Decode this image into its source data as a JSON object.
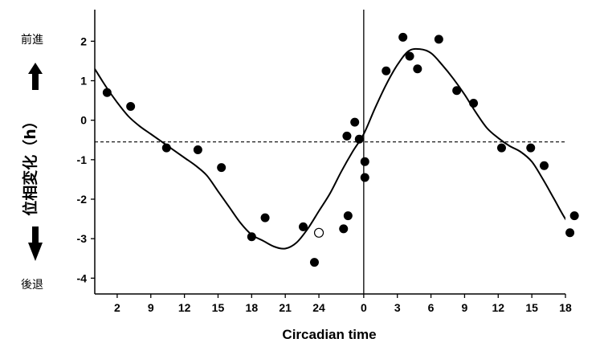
{
  "chart_data": {
    "type": "scatter",
    "title": "",
    "xlabel": "Circadian time",
    "ylabel": "位相変化（h）",
    "advance_label": "前進",
    "delay_label": "後退",
    "x_ticks": [
      "2",
      "9",
      "12",
      "15",
      "18",
      "21",
      "24",
      "0",
      "3",
      "6",
      "9",
      "12",
      "15",
      "18"
    ],
    "x_tick_values": [
      -22,
      -19,
      -16,
      -13,
      -10,
      -7,
      -4,
      0,
      3,
      6,
      9,
      12,
      15,
      18
    ],
    "xlim": [
      -24,
      18
    ],
    "y_ticks": [
      "2",
      "1",
      "0",
      "-1",
      "-2",
      "-3",
      "-4"
    ],
    "y_tick_values": [
      2,
      1,
      0,
      -1,
      -2,
      -3,
      -4
    ],
    "ylim": [
      -4.4,
      2.8
    ],
    "reference_line_y": -0.55,
    "vertical_line_x": 0,
    "points_filled": [
      [
        -22.9,
        0.7
      ],
      [
        -20.8,
        0.35
      ],
      [
        -17.6,
        -0.7
      ],
      [
        -14.8,
        -0.75
      ],
      [
        -12.7,
        -1.2
      ],
      [
        -10.0,
        -2.95
      ],
      [
        -8.8,
        -2.47
      ],
      [
        -5.4,
        -2.7
      ],
      [
        -4.4,
        -3.6
      ],
      [
        -1.8,
        -2.75
      ],
      [
        -1.5,
        -0.4
      ],
      [
        -1.4,
        -2.42
      ],
      [
        -0.8,
        -0.05
      ],
      [
        -0.4,
        -0.48
      ],
      [
        0.1,
        -1.05
      ],
      [
        0.1,
        -1.45
      ],
      [
        2.0,
        1.25
      ],
      [
        3.5,
        2.1
      ],
      [
        4.1,
        1.62
      ],
      [
        4.8,
        1.3
      ],
      [
        6.7,
        2.05
      ],
      [
        8.3,
        0.75
      ],
      [
        9.8,
        0.43
      ],
      [
        12.3,
        -0.7
      ],
      [
        14.9,
        -0.7
      ],
      [
        16.1,
        -1.15
      ],
      [
        18.4,
        -2.85
      ],
      [
        18.8,
        -2.42
      ]
    ],
    "points_open": [
      [
        -4.0,
        -2.85
      ]
    ],
    "fit_curve": [
      [
        -24,
        1.3
      ],
      [
        -23,
        0.85
      ],
      [
        -22,
        0.45
      ],
      [
        -21,
        0.1
      ],
      [
        -20,
        -0.15
      ],
      [
        -19,
        -0.35
      ],
      [
        -18,
        -0.55
      ],
      [
        -17,
        -0.75
      ],
      [
        -16,
        -0.95
      ],
      [
        -15,
        -1.15
      ],
      [
        -14,
        -1.4
      ],
      [
        -13,
        -1.8
      ],
      [
        -12,
        -2.2
      ],
      [
        -11,
        -2.6
      ],
      [
        -10,
        -2.9
      ],
      [
        -9,
        -3.05
      ],
      [
        -8,
        -3.2
      ],
      [
        -7,
        -3.25
      ],
      [
        -6,
        -3.1
      ],
      [
        -5,
        -2.75
      ],
      [
        -4,
        -2.3
      ],
      [
        -3,
        -1.85
      ],
      [
        -2,
        -1.3
      ],
      [
        -1,
        -0.8
      ],
      [
        0,
        -0.35
      ],
      [
        1,
        0.3
      ],
      [
        2,
        0.9
      ],
      [
        3,
        1.4
      ],
      [
        4,
        1.75
      ],
      [
        5,
        1.8
      ],
      [
        6,
        1.7
      ],
      [
        7,
        1.4
      ],
      [
        8,
        1.05
      ],
      [
        9,
        0.65
      ],
      [
        10,
        0.2
      ],
      [
        11,
        -0.2
      ],
      [
        12,
        -0.45
      ],
      [
        13,
        -0.65
      ],
      [
        14,
        -0.8
      ],
      [
        15,
        -1.05
      ],
      [
        16,
        -1.5
      ],
      [
        17,
        -2.0
      ],
      [
        18,
        -2.5
      ],
      [
        19,
        -2.85
      ]
    ],
    "grid": false,
    "legend": "none",
    "colors": {
      "marker": "#000000",
      "line": "#000000",
      "open_marker_fill": "#ffffff"
    }
  }
}
